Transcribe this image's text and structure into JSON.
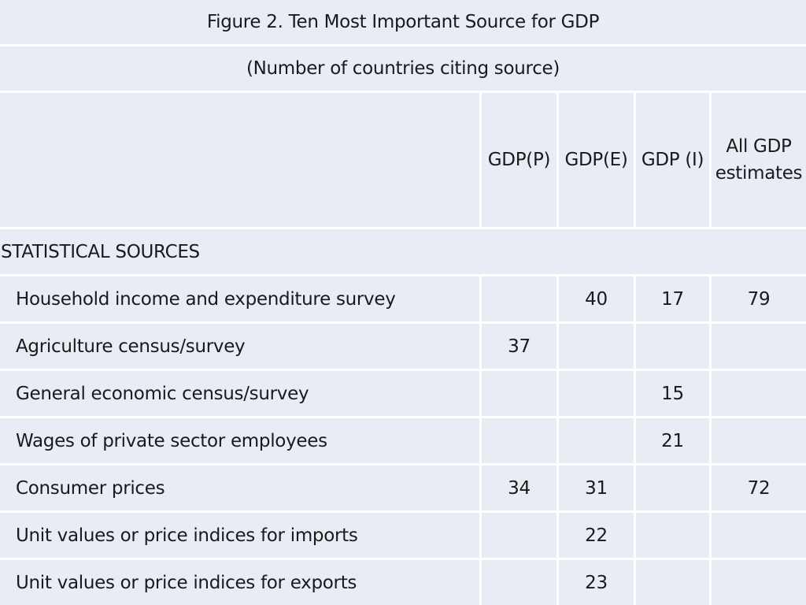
{
  "title": "Figure 2. Ten Most Important Source for GDP",
  "subtitle": "(Number of countries citing source)",
  "columns": {
    "label": "",
    "gdp_p": "GDP(P)",
    "gdp_e": "GDP(E)",
    "gdp_i": "GDP (I)",
    "all_line1": "All GDP",
    "all_line2": "estimates"
  },
  "section_heading": "STATISTICAL SOURCES",
  "rows": [
    {
      "label": "Household income and expenditure survey",
      "gdp_p": "",
      "gdp_e": "40",
      "gdp_i": "17",
      "all": "79"
    },
    {
      "label": "Agriculture census/survey",
      "gdp_p": "37",
      "gdp_e": "",
      "gdp_i": "",
      "all": ""
    },
    {
      "label": "General economic census/survey",
      "gdp_p": "",
      "gdp_e": "",
      "gdp_i": "15",
      "all": ""
    },
    {
      "label": "Wages of private sector employees",
      "gdp_p": "",
      "gdp_e": "",
      "gdp_i": "21",
      "all": ""
    },
    {
      "label": "Consumer prices",
      "gdp_p": "34",
      "gdp_e": "31",
      "gdp_i": "",
      "all": "72"
    },
    {
      "label": "Unit values or price indices for imports",
      "gdp_p": "",
      "gdp_e": "22",
      "gdp_i": "",
      "all": ""
    },
    {
      "label": "Unit values or price indices for exports",
      "gdp_p": "",
      "gdp_e": "23",
      "gdp_i": "",
      "all": ""
    }
  ]
}
